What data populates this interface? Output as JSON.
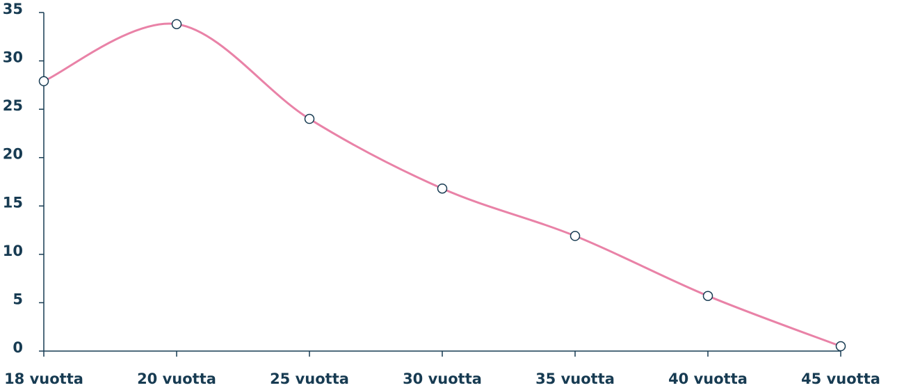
{
  "chart_data": {
    "type": "line",
    "categories": [
      "18 vuotta",
      "20 vuotta",
      "25 vuotta",
      "30 vuotta",
      "35 vuotta",
      "40 vuotta",
      "45 vuotta"
    ],
    "series": [
      {
        "color": "#e982a7",
        "values": [
          27.9,
          33.8,
          24.0,
          16.8,
          11.9,
          5.7,
          0.5
        ]
      }
    ],
    "ylim": [
      0,
      35
    ],
    "yticks": [
      0,
      5,
      10,
      15,
      20,
      25,
      30,
      35
    ]
  }
}
